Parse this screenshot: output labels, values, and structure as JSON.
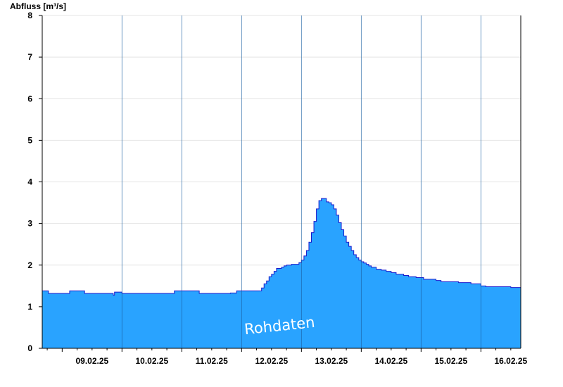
{
  "chart_data": {
    "type": "area",
    "ylabel": "Abfluss [m³/s]",
    "ylim": [
      0,
      8
    ],
    "yticks": [
      "0",
      "1",
      "2",
      "3",
      "4",
      "5",
      "6",
      "7",
      "8"
    ],
    "xlim": [
      "08.02.25 16:00",
      "16.02.25 16:00"
    ],
    "day_boundaries": [
      "09.02.25",
      "10.02.25",
      "11.02.25",
      "12.02.25",
      "13.02.25",
      "14.02.25",
      "15.02.25",
      "16.02.25"
    ],
    "x_tick_labels": [
      "09.02.25",
      "10.02.25",
      "11.02.25",
      "12.02.25",
      "13.02.25",
      "14.02.25",
      "15.02.25",
      "16.02.25"
    ],
    "grid": true,
    "fill_color": "#29a3ff",
    "line_color": "#1a1acc",
    "x_hours_since_start": [
      0,
      2,
      2.5,
      9,
      9.5,
      10,
      11,
      14,
      17,
      27,
      28.5,
      29,
      30,
      32,
      44,
      44.5,
      52,
      53,
      63,
      75,
      75.5,
      76,
      78,
      80,
      86,
      88,
      89,
      90,
      91,
      92,
      93,
      94,
      96,
      97,
      98,
      100,
      101,
      102,
      103,
      104,
      105,
      106,
      107,
      108,
      109,
      110,
      111,
      112,
      113,
      114,
      115,
      116,
      117,
      118,
      119,
      120,
      121,
      122,
      123,
      124,
      125,
      126,
      127,
      128,
      129,
      130,
      131,
      132,
      134,
      136,
      138,
      140,
      142,
      145,
      147,
      150,
      153,
      158,
      160,
      167,
      172,
      176,
      178,
      188,
      192
    ],
    "values": [
      1.38,
      1.38,
      1.32,
      1.32,
      1.32,
      1.32,
      1.38,
      1.38,
      1.32,
      1.32,
      1.28,
      1.35,
      1.35,
      1.32,
      1.32,
      1.32,
      1.32,
      1.38,
      1.32,
      1.32,
      1.33,
      1.33,
      1.38,
      1.38,
      1.38,
      1.45,
      1.55,
      1.62,
      1.72,
      1.78,
      1.85,
      1.92,
      1.95,
      1.98,
      2.0,
      2.02,
      2.02,
      2.02,
      2.06,
      2.12,
      2.22,
      2.35,
      2.55,
      2.78,
      3.05,
      3.35,
      3.55,
      3.6,
      3.6,
      3.52,
      3.5,
      3.45,
      3.35,
      3.2,
      3.02,
      2.85,
      2.7,
      2.55,
      2.45,
      2.35,
      2.25,
      2.18,
      2.12,
      2.08,
      2.05,
      2.02,
      1.98,
      1.95,
      1.9,
      1.88,
      1.85,
      1.82,
      1.78,
      1.75,
      1.72,
      1.7,
      1.66,
      1.63,
      1.6,
      1.58,
      1.55,
      1.5,
      1.48,
      1.46,
      1.43
    ]
  },
  "watermark": "Rohdaten"
}
